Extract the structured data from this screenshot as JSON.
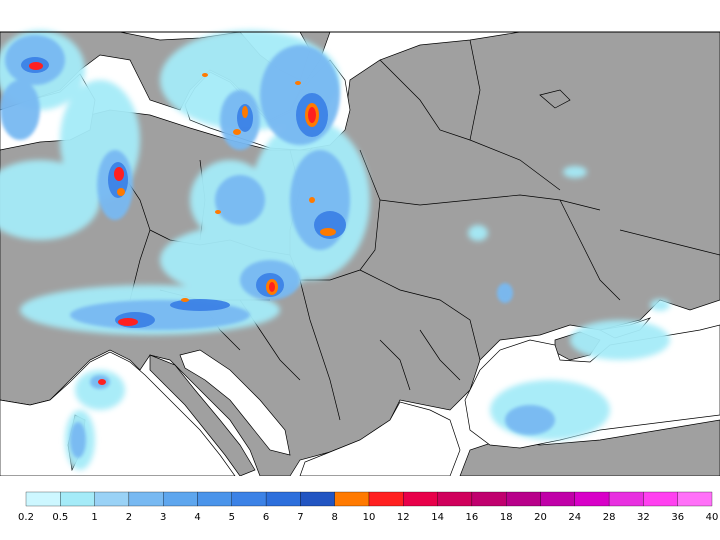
{
  "map": {
    "land_color": "#a0a0a0",
    "sea_color": "#ffffff",
    "border_color": "#000000"
  },
  "colorbar": {
    "labels": [
      "0.2",
      "0.5",
      "1",
      "2",
      "3",
      "4",
      "5",
      "6",
      "7",
      "8",
      "10",
      "12",
      "14",
      "16",
      "18",
      "20",
      "24",
      "28",
      "32",
      "36",
      "40"
    ],
    "colors": [
      "#cdf7ff",
      "#a5ebf8",
      "#9ad2f6",
      "#78b9f2",
      "#5ea6ee",
      "#4b94ea",
      "#3c82e6",
      "#2d6fdc",
      "#2255c2",
      "#ff7a00",
      "#ff2020",
      "#e8004a",
      "#d0005c",
      "#c0006e",
      "#b8008a",
      "#c000a8",
      "#d800c8",
      "#e830e0",
      "#ff40f0",
      "#ff70f8"
    ]
  }
}
